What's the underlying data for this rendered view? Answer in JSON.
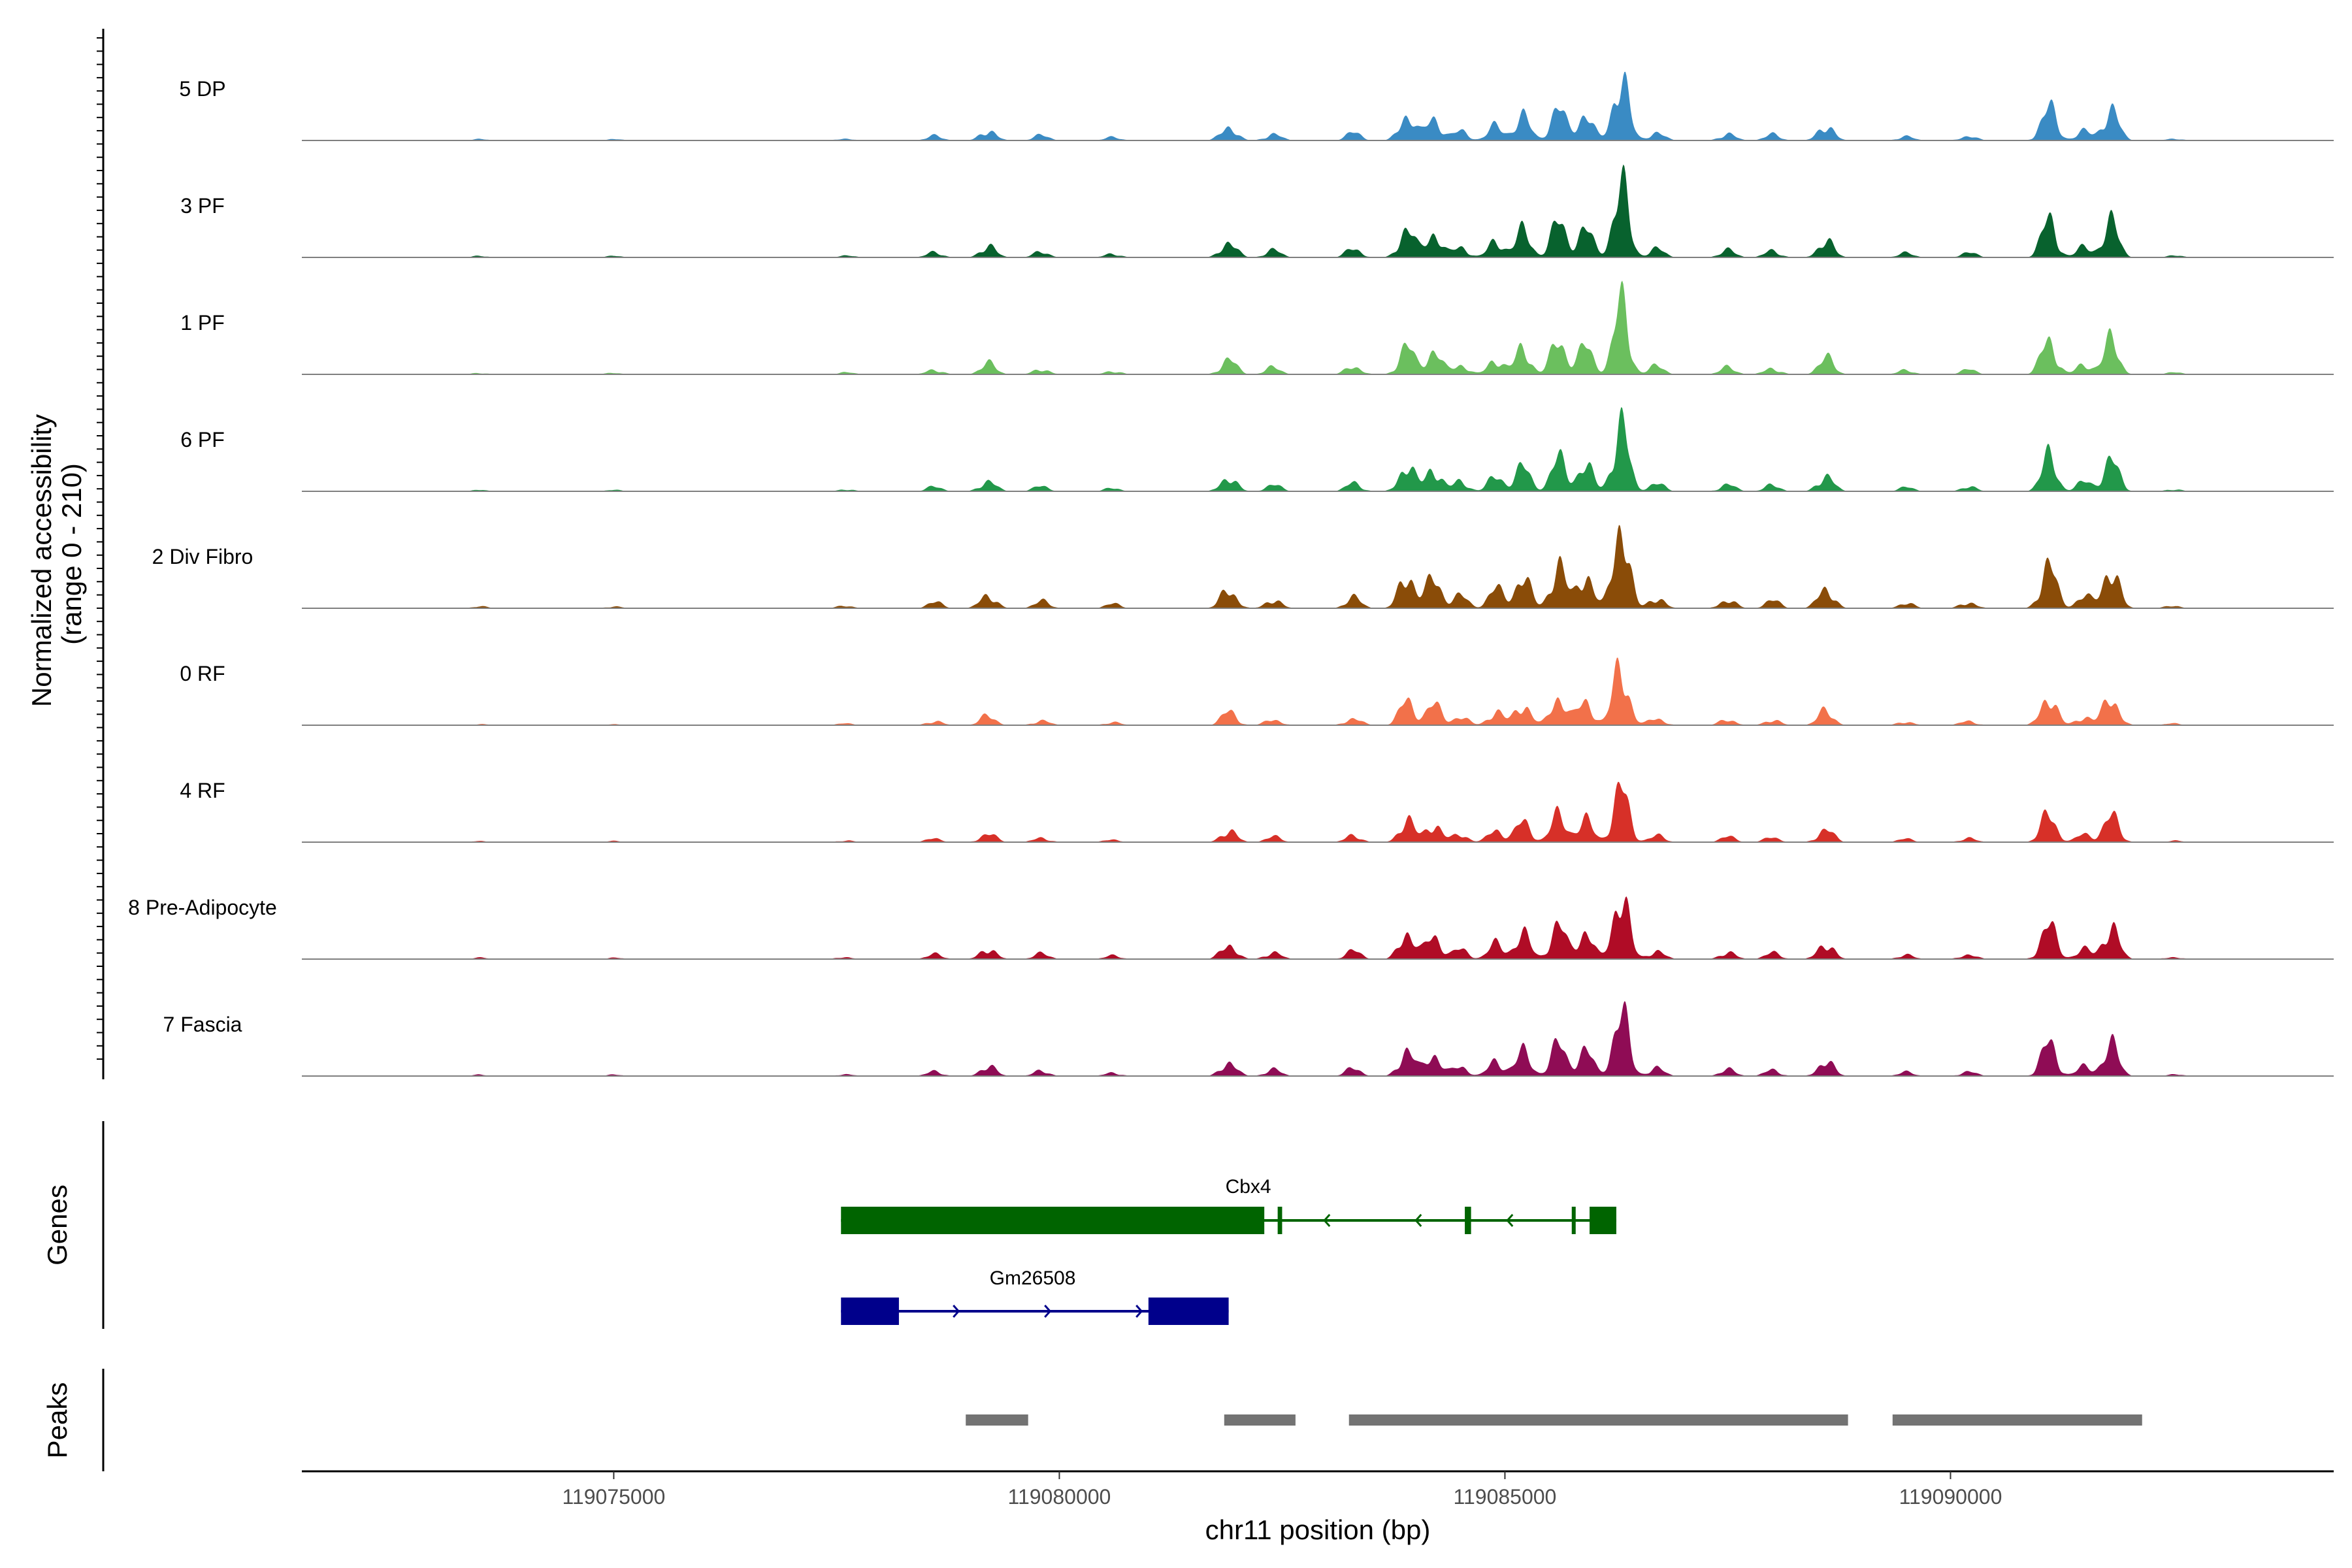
{
  "chart_data": {
    "type": "area",
    "chromosome": "chr11",
    "xlabel": "chr11 position (bp)",
    "ylabel": "Normalized accessibility",
    "ylabel_range": "(range 0 - 210)",
    "xlim": [
      119071500,
      119094300
    ],
    "ylim": [
      0,
      210
    ],
    "x_ticks": [
      119075000,
      119080000,
      119085000,
      119090000
    ],
    "x_tick_labels": [
      "119075000",
      "119080000",
      "119085000",
      "119090000"
    ],
    "peak_profile": [
      {
        "pos": 119073500,
        "h": 2
      },
      {
        "pos": 119075000,
        "h": 2
      },
      {
        "pos": 119077600,
        "h": 3
      },
      {
        "pos": 119078600,
        "h": 7
      },
      {
        "pos": 119079200,
        "h": 16
      },
      {
        "pos": 119079800,
        "h": 8
      },
      {
        "pos": 119080600,
        "h": 5
      },
      {
        "pos": 119081900,
        "h": 22
      },
      {
        "pos": 119082400,
        "h": 10
      },
      {
        "pos": 119083300,
        "h": 12
      },
      {
        "pos": 119083900,
        "h": 40
      },
      {
        "pos": 119084200,
        "h": 34
      },
      {
        "pos": 119084500,
        "h": 14
      },
      {
        "pos": 119084900,
        "h": 22
      },
      {
        "pos": 119085200,
        "h": 36
      },
      {
        "pos": 119085600,
        "h": 48
      },
      {
        "pos": 119085900,
        "h": 40
      },
      {
        "pos": 119086300,
        "h": 100
      },
      {
        "pos": 119086700,
        "h": 12
      },
      {
        "pos": 119087500,
        "h": 10
      },
      {
        "pos": 119088000,
        "h": 9
      },
      {
        "pos": 119088600,
        "h": 24
      },
      {
        "pos": 119089500,
        "h": 6
      },
      {
        "pos": 119090200,
        "h": 7
      },
      {
        "pos": 119091100,
        "h": 50
      },
      {
        "pos": 119091500,
        "h": 14
      },
      {
        "pos": 119091800,
        "h": 48
      },
      {
        "pos": 119092500,
        "h": 3
      }
    ],
    "series": [
      {
        "name": "5 DP",
        "color": "#3a8bc4",
        "scale": 0.74,
        "seed": 3
      },
      {
        "name": "3 PF",
        "color": "#08622e",
        "scale": 0.82,
        "seed": 7
      },
      {
        "name": "1 PF",
        "color": "#6bbf5e",
        "scale": 0.78,
        "seed": 11
      },
      {
        "name": "6 PF",
        "color": "#22984a",
        "scale": 0.76,
        "seed": 17
      },
      {
        "name": "2 Div Fibro",
        "color": "#8a4c08",
        "scale": 1.0,
        "seed": 23
      },
      {
        "name": "0 RF",
        "color": "#f2714a",
        "scale": 0.68,
        "seed": 29
      },
      {
        "name": "4 RF",
        "color": "#d73028",
        "scale": 0.62,
        "seed": 31
      },
      {
        "name": "8 Pre-Adipocyte",
        "color": "#b00c26",
        "scale": 0.78,
        "seed": 37
      },
      {
        "name": "7 Fascia",
        "color": "#8f0c55",
        "scale": 0.74,
        "seed": 41
      }
    ],
    "genes": [
      {
        "name": "Cbx4",
        "color": "#006400",
        "strand": "-",
        "start": 119077550,
        "end": 119086250,
        "exons": [
          [
            119077550,
            119082300
          ],
          [
            119082450,
            119082500
          ],
          [
            119084550,
            119084620
          ],
          [
            119085750,
            119085780
          ],
          [
            119085950,
            119086250
          ]
        ]
      },
      {
        "name": "Gm26508",
        "color": "#00008b",
        "strand": "+",
        "start": 119077550,
        "end": 119081900,
        "exons": [
          [
            119077550,
            119078200
          ],
          [
            119081000,
            119081900
          ]
        ]
      }
    ],
    "genes_label": "Genes",
    "peaks_label": "Peaks",
    "peaks": [
      [
        119078950,
        119079650
      ],
      [
        119081850,
        119082650
      ],
      [
        119083250,
        119088850
      ],
      [
        119089350,
        119092150
      ]
    ]
  }
}
